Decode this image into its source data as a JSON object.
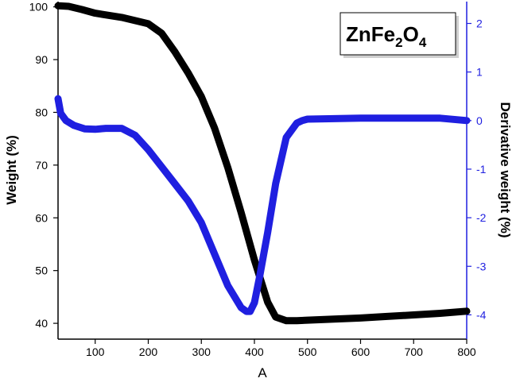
{
  "chart_data": {
    "type": "line",
    "xlabel": "A",
    "ylabel": "Weight (%)",
    "y2label": "Derivative weight (%)",
    "xlim": [
      30,
      800
    ],
    "ylim": [
      37,
      101
    ],
    "y2lim": [
      -4.5,
      2.45
    ],
    "x_ticks": [
      100,
      200,
      300,
      400,
      500,
      600,
      700,
      800
    ],
    "y_ticks": [
      40,
      50,
      60,
      70,
      80,
      90,
      100
    ],
    "y2_ticks": [
      -4,
      -3,
      -2,
      -1,
      0,
      1,
      2
    ],
    "grid": false,
    "legend_box": {
      "formula_parts": [
        {
          "text": "ZnFe",
          "sub": false
        },
        {
          "text": "2",
          "sub": true
        },
        {
          "text": "O",
          "sub": false
        },
        {
          "text": "4",
          "sub": true
        }
      ],
      "position": "top-right"
    },
    "colors": {
      "weight": "#000000",
      "derivative": "#1f1fe0",
      "right_axis": "#1f1fe0"
    },
    "series": [
      {
        "axis": "left",
        "x": [
          30,
          50,
          75,
          100,
          150,
          200,
          225,
          250,
          275,
          300,
          325,
          350,
          375,
          400,
          425,
          440,
          460,
          480,
          500,
          550,
          600,
          650,
          700,
          750,
          800
        ],
        "y": [
          100.2,
          100.1,
          99.5,
          98.8,
          98.0,
          96.8,
          95.0,
          91.5,
          87.5,
          83.0,
          77.0,
          69.5,
          61.0,
          52.0,
          44.0,
          41.2,
          40.5,
          40.5,
          40.6,
          40.8,
          41.0,
          41.3,
          41.6,
          41.9,
          42.3
        ]
      },
      {
        "axis": "right",
        "x": [
          30,
          35,
          45,
          60,
          80,
          100,
          120,
          150,
          175,
          200,
          225,
          250,
          275,
          300,
          325,
          350,
          375,
          385,
          392,
          400,
          410,
          425,
          440,
          460,
          480,
          490,
          500,
          550,
          600,
          650,
          700,
          750,
          800
        ],
        "y": [
          0.45,
          0.15,
          0.0,
          -0.1,
          -0.17,
          -0.18,
          -0.16,
          -0.16,
          -0.3,
          -0.6,
          -0.95,
          -1.3,
          -1.65,
          -2.1,
          -2.75,
          -3.4,
          -3.85,
          -3.93,
          -3.93,
          -3.75,
          -3.2,
          -2.3,
          -1.3,
          -0.35,
          -0.05,
          0.0,
          0.03,
          0.04,
          0.05,
          0.05,
          0.05,
          0.05,
          0.0
        ]
      }
    ]
  }
}
